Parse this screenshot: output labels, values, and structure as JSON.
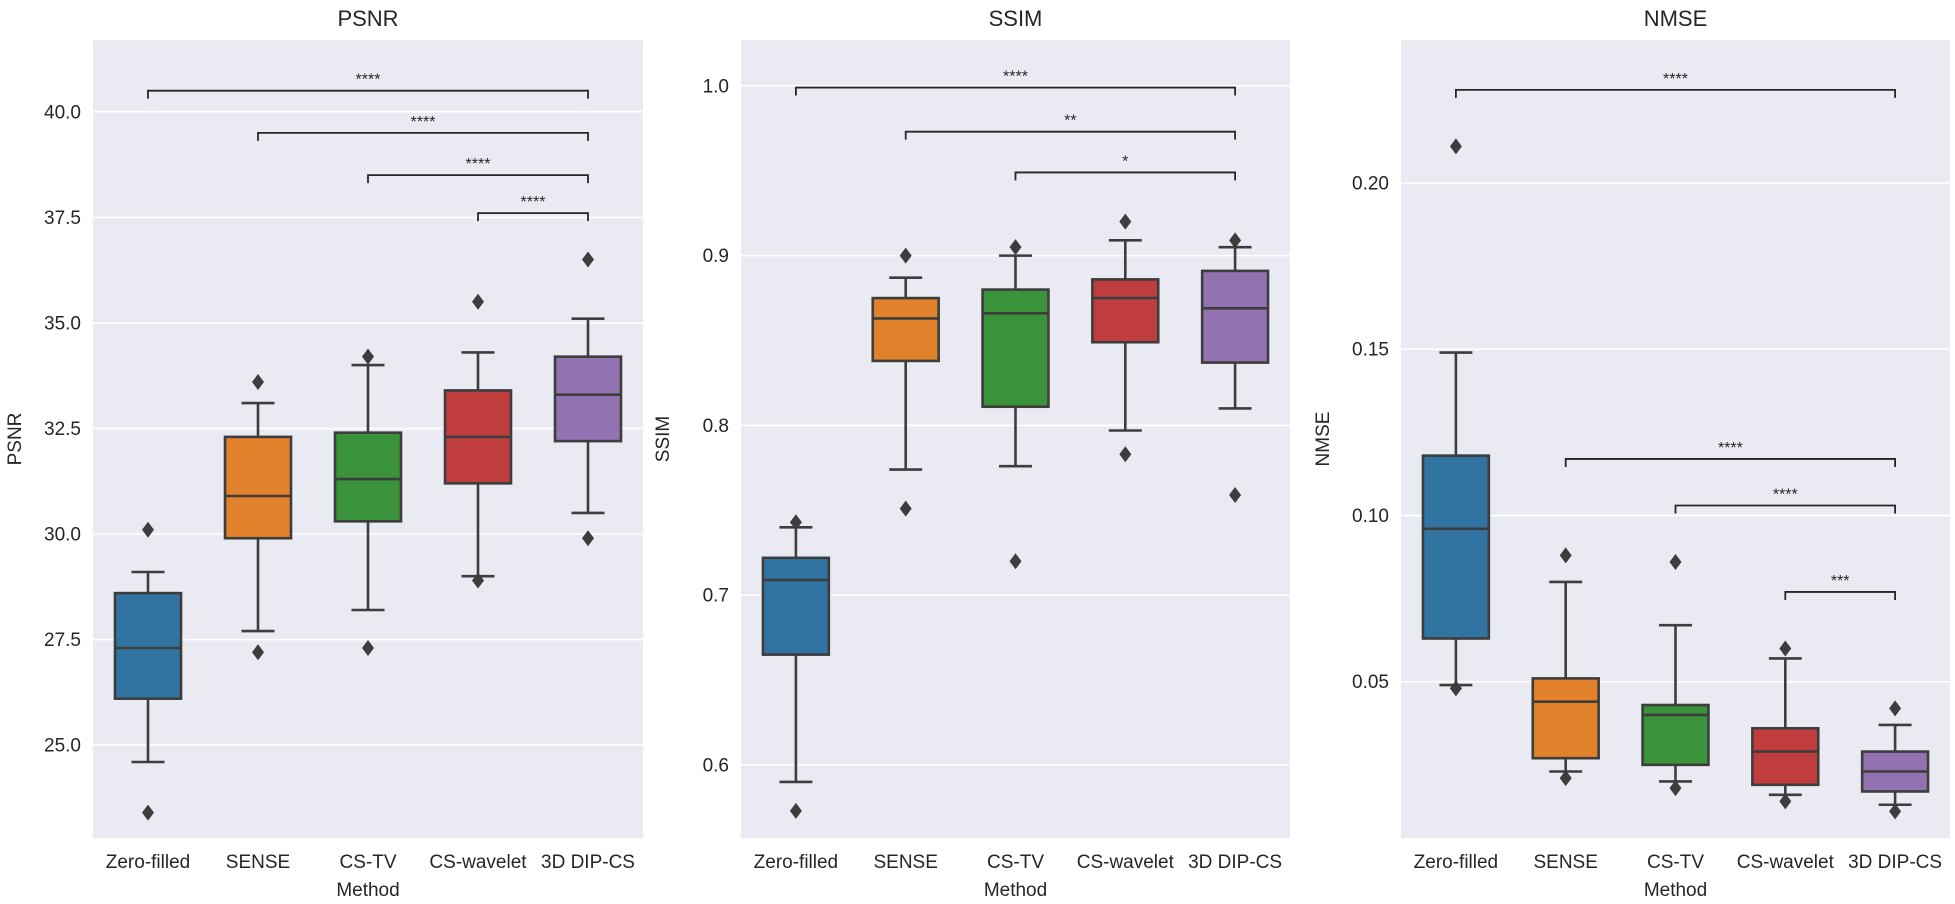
{
  "figure": {
    "xlabel": "Method"
  },
  "chart_data": [
    {
      "type": "box",
      "title": "PSNR",
      "xlabel": "Method",
      "ylabel": "PSNR",
      "categories": [
        "Zero-filled",
        "SENSE",
        "CS-TV",
        "CS-wavelet",
        "3D DIP-CS"
      ],
      "ylim": [
        22.8,
        41.7
      ],
      "yticks": [
        25.0,
        27.5,
        30.0,
        32.5,
        35.0,
        37.5,
        40.0
      ],
      "ytick_labels": [
        "25.0",
        "27.5",
        "30.0",
        "32.5",
        "35.0",
        "37.5",
        "40.0"
      ],
      "boxes": [
        {
          "whislo": 24.6,
          "q1": 26.1,
          "med": 27.3,
          "q3": 28.6,
          "whishi": 29.1,
          "fliers": [
            23.4,
            30.1
          ]
        },
        {
          "whislo": 27.7,
          "q1": 29.9,
          "med": 30.9,
          "q3": 32.3,
          "whishi": 33.1,
          "fliers": [
            27.2,
            33.6
          ]
        },
        {
          "whislo": 28.2,
          "q1": 30.3,
          "med": 31.3,
          "q3": 32.4,
          "whishi": 34.0,
          "fliers": [
            27.3,
            34.2
          ]
        },
        {
          "whislo": 29.0,
          "q1": 31.2,
          "med": 32.3,
          "q3": 33.4,
          "whishi": 34.3,
          "fliers": [
            28.9,
            35.5
          ]
        },
        {
          "whislo": 30.5,
          "q1": 32.2,
          "med": 33.3,
          "q3": 34.2,
          "whishi": 35.1,
          "fliers": [
            29.9,
            36.5
          ]
        }
      ],
      "brackets": [
        {
          "from": 0,
          "to": 4,
          "y": 40.5,
          "label": "****"
        },
        {
          "from": 1,
          "to": 4,
          "y": 39.5,
          "label": "****"
        },
        {
          "from": 2,
          "to": 4,
          "y": 38.5,
          "label": "****"
        },
        {
          "from": 3,
          "to": 4,
          "y": 37.6,
          "label": "****"
        }
      ]
    },
    {
      "type": "box",
      "title": "SSIM",
      "xlabel": "Method",
      "ylabel": "SSIM",
      "categories": [
        "Zero-filled",
        "SENSE",
        "CS-TV",
        "CS-wavelet",
        "3D DIP-CS"
      ],
      "ylim": [
        0.557,
        1.027
      ],
      "yticks": [
        0.6,
        0.7,
        0.8,
        0.9,
        1.0
      ],
      "ytick_labels": [
        "0.6",
        "0.7",
        "0.8",
        "0.9",
        "1.0"
      ],
      "boxes": [
        {
          "whislo": 0.59,
          "q1": 0.665,
          "med": 0.709,
          "q3": 0.722,
          "whishi": 0.74,
          "fliers": [
            0.573,
            0.743
          ]
        },
        {
          "whislo": 0.774,
          "q1": 0.838,
          "med": 0.863,
          "q3": 0.875,
          "whishi": 0.887,
          "fliers": [
            0.751,
            0.9
          ]
        },
        {
          "whislo": 0.776,
          "q1": 0.811,
          "med": 0.866,
          "q3": 0.88,
          "whishi": 0.9,
          "fliers": [
            0.72,
            0.905
          ]
        },
        {
          "whislo": 0.797,
          "q1": 0.849,
          "med": 0.875,
          "q3": 0.886,
          "whishi": 0.909,
          "fliers": [
            0.783,
            0.92
          ]
        },
        {
          "whislo": 0.81,
          "q1": 0.837,
          "med": 0.869,
          "q3": 0.891,
          "whishi": 0.905,
          "fliers": [
            0.759,
            0.909
          ]
        }
      ],
      "brackets": [
        {
          "from": 0,
          "to": 4,
          "y": 0.999,
          "label": "****"
        },
        {
          "from": 1,
          "to": 4,
          "y": 0.973,
          "label": "**"
        },
        {
          "from": 2,
          "to": 4,
          "y": 0.949,
          "label": "*"
        }
      ]
    },
    {
      "type": "box",
      "title": "NMSE",
      "xlabel": "Method",
      "ylabel": "NMSE",
      "categories": [
        "Zero-filled",
        "SENSE",
        "CS-TV",
        "CS-wavelet",
        "3D DIP-CS"
      ],
      "ylim": [
        0.003,
        0.243
      ],
      "yticks": [
        0.05,
        0.1,
        0.15,
        0.2
      ],
      "ytick_labels": [
        "0.05",
        "0.10",
        "0.15",
        "0.20"
      ],
      "boxes": [
        {
          "whislo": 0.049,
          "q1": 0.063,
          "med": 0.096,
          "q3": 0.118,
          "whishi": 0.149,
          "fliers": [
            0.048,
            0.211
          ]
        },
        {
          "whislo": 0.023,
          "q1": 0.027,
          "med": 0.044,
          "q3": 0.051,
          "whishi": 0.08,
          "fliers": [
            0.021,
            0.088
          ]
        },
        {
          "whislo": 0.02,
          "q1": 0.025,
          "med": 0.04,
          "q3": 0.043,
          "whishi": 0.067,
          "fliers": [
            0.018,
            0.086
          ]
        },
        {
          "whislo": 0.016,
          "q1": 0.019,
          "med": 0.029,
          "q3": 0.036,
          "whishi": 0.057,
          "fliers": [
            0.014,
            0.06
          ]
        },
        {
          "whislo": 0.013,
          "q1": 0.017,
          "med": 0.023,
          "q3": 0.029,
          "whishi": 0.037,
          "fliers": [
            0.011,
            0.042
          ]
        }
      ],
      "brackets": [
        {
          "from": 0,
          "to": 4,
          "y": 0.228,
          "label": "****"
        },
        {
          "from": 1,
          "to": 4,
          "y": 0.117,
          "label": "****"
        },
        {
          "from": 2,
          "to": 4,
          "y": 0.103,
          "label": "****"
        },
        {
          "from": 3,
          "to": 4,
          "y": 0.077,
          "label": "***"
        }
      ]
    }
  ],
  "palette": {
    "background": "#eaeaf2",
    "grid": "#ffffff",
    "edge": "#3d3d3d",
    "boxes": [
      "#3274a1",
      "#e1812c",
      "#3a923a",
      "#c03d3e",
      "#9372b2"
    ]
  }
}
